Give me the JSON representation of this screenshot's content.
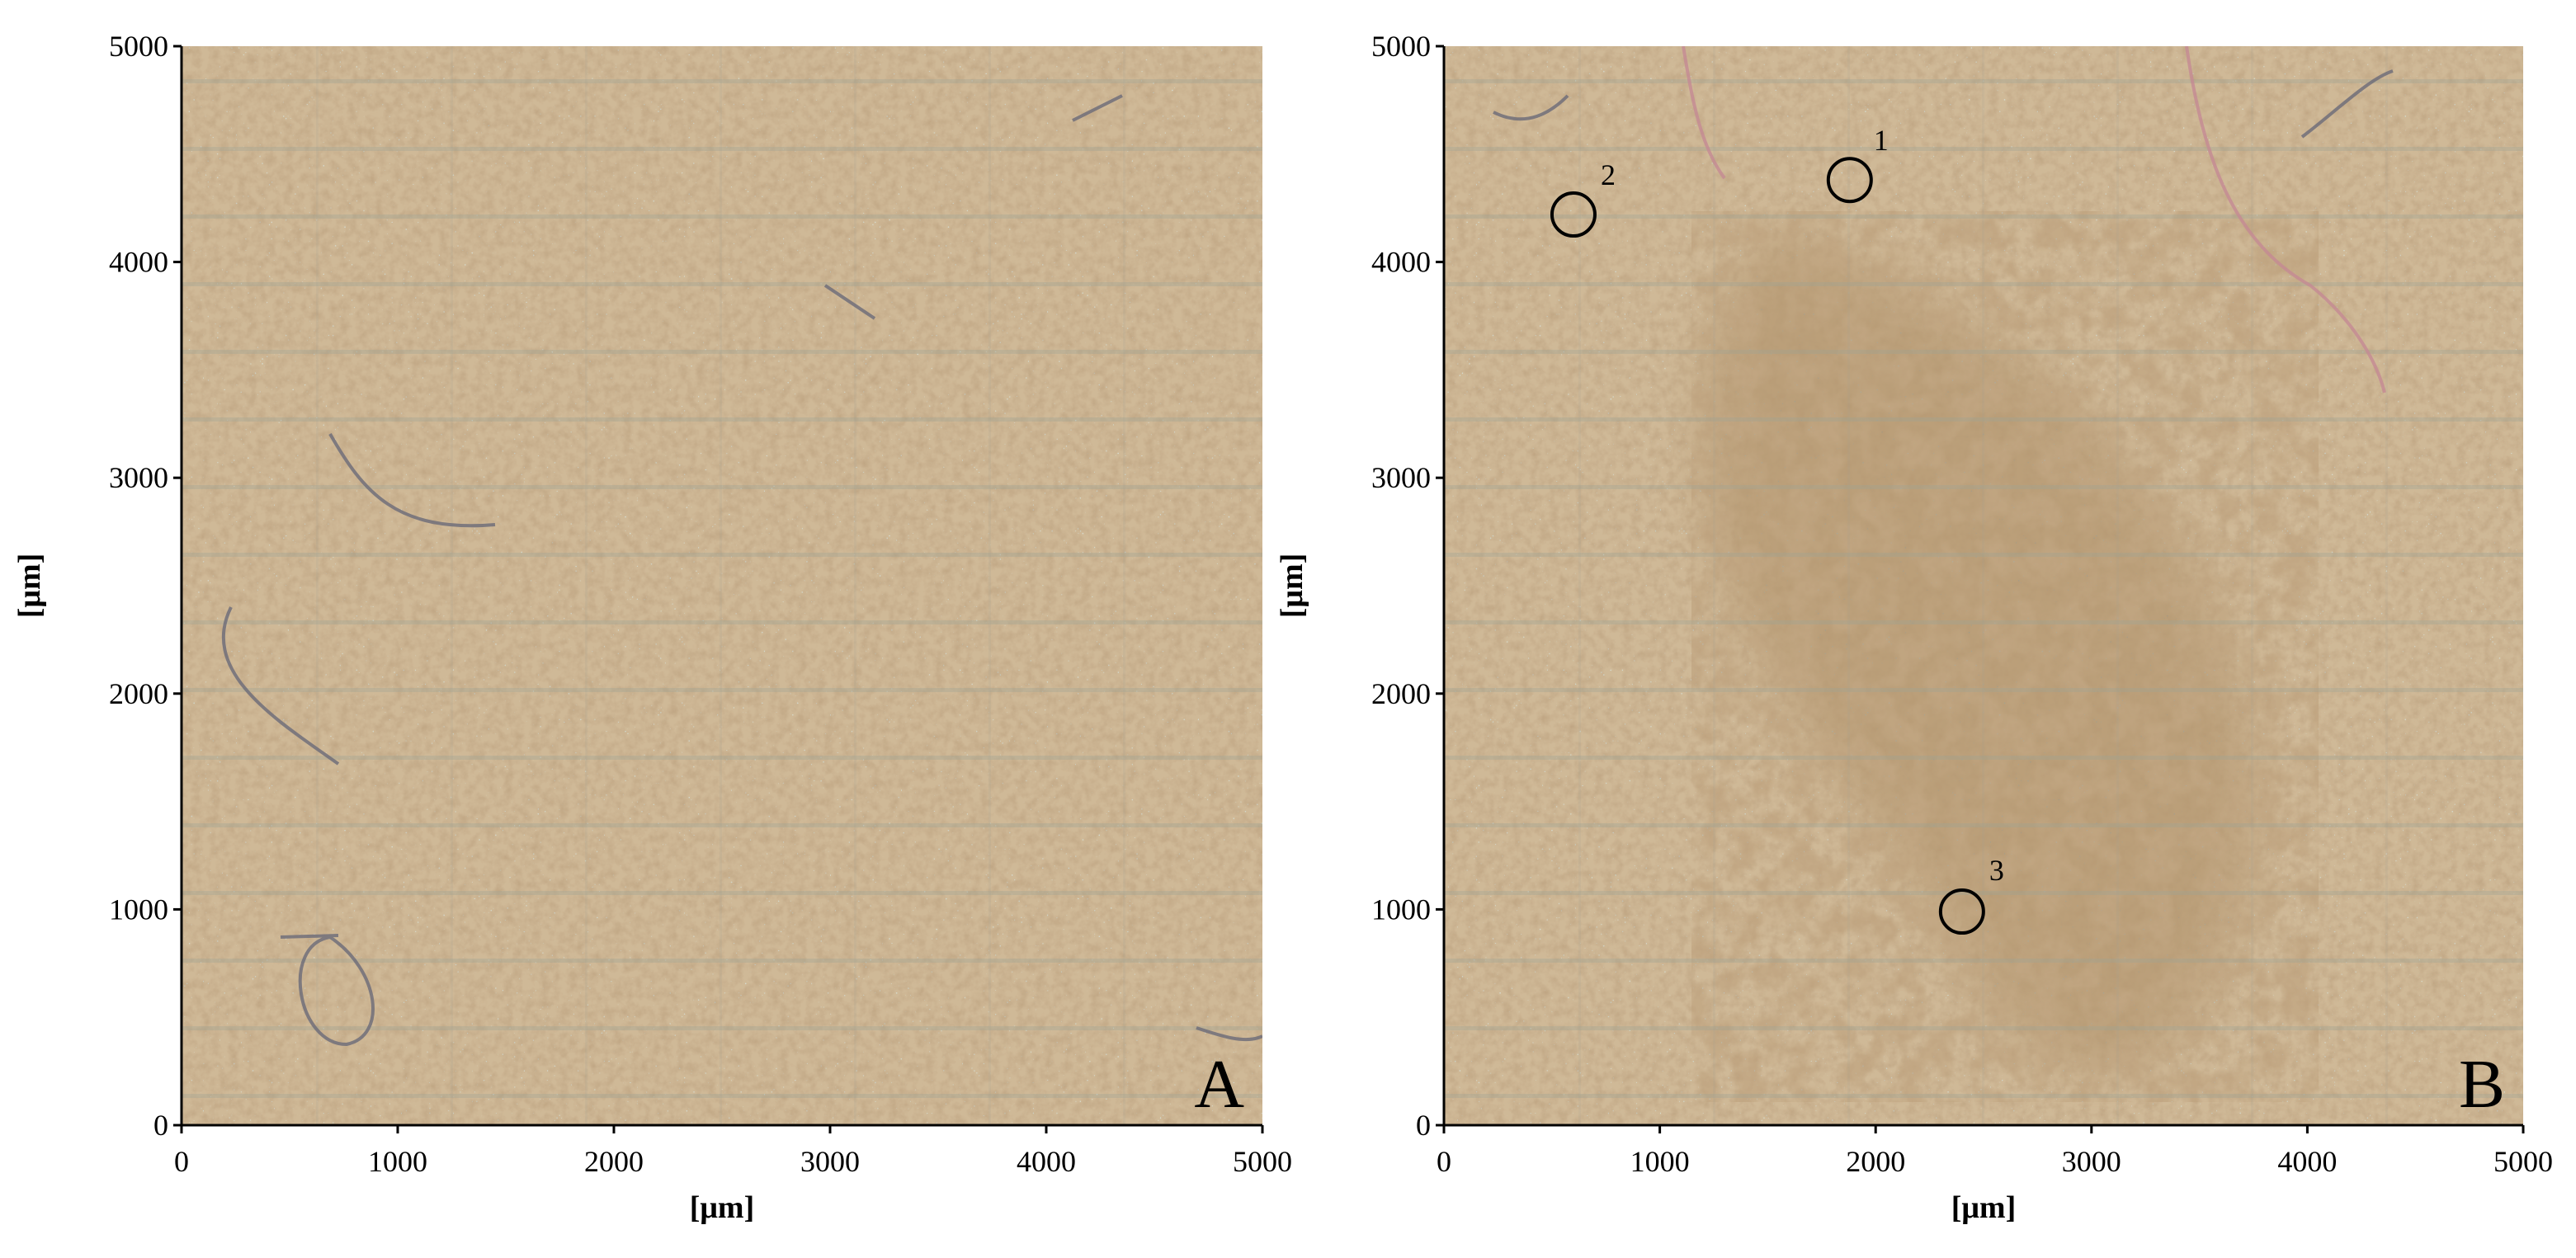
{
  "panels": [
    {
      "label": "A",
      "xlabel": "[μm]",
      "ylabel": "[μm]",
      "xlim": [
        0,
        5000
      ],
      "ylim": [
        0,
        5000
      ],
      "xticks": [
        0,
        1000,
        2000,
        3000,
        4000,
        5000
      ],
      "yticks": [
        0,
        1000,
        2000,
        3000,
        4000,
        5000
      ]
    },
    {
      "label": "B",
      "xlabel": "[μm]",
      "ylabel": "[μm]",
      "xlim": [
        0,
        5000
      ],
      "ylim": [
        0,
        5000
      ],
      "xticks": [
        0,
        1000,
        2000,
        3000,
        4000,
        5000
      ],
      "yticks": [
        0,
        1000,
        2000,
        3000,
        4000,
        5000
      ],
      "annotations": [
        "1",
        "2",
        "3"
      ]
    }
  ]
}
